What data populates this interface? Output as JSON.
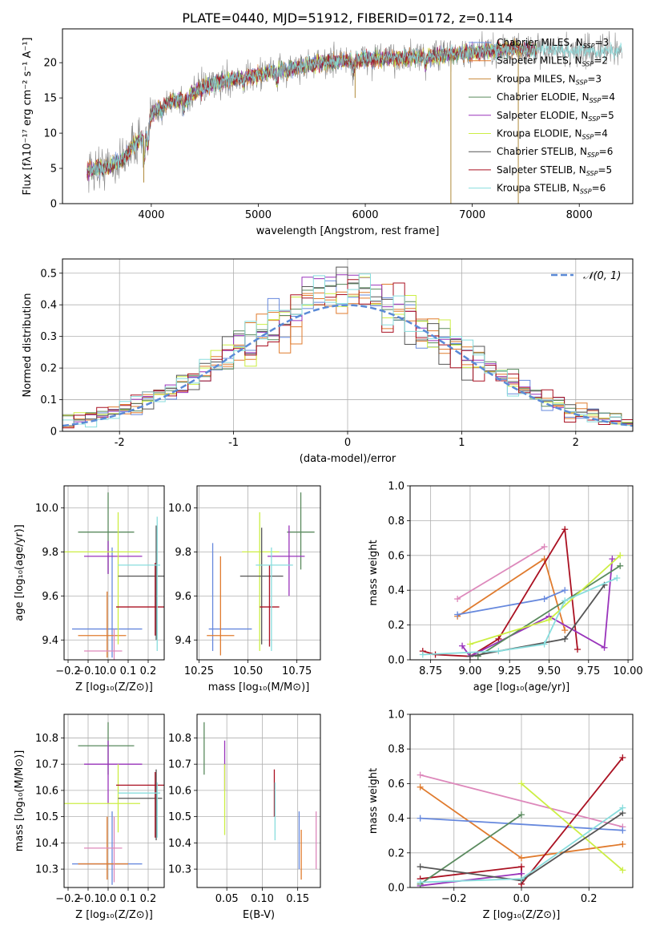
{
  "title": "PLATE=0440, MJD=51912, FIBERID=0172, z=0.114",
  "colors": {
    "c1": "#6688dd",
    "c2": "#e07b2e",
    "c3": "#5a8a5e",
    "c4": "#9933bb",
    "c5": "#ccee44",
    "c6": "#555555",
    "c7": "#aa1122",
    "c8": "#88dddd",
    "c9": "#dd88bb",
    "c10": "#888888",
    "norm": "#5b8ad6",
    "grid": "#b0b0b0"
  },
  "legend_entries": [
    {
      "main": "Chabrier MILES, N",
      "sub": "SSP",
      "tail": "=3",
      "color": "#6688dd"
    },
    {
      "main": "Salpeter MILES, N",
      "sub": "SSP",
      "tail": "=2",
      "color": "#e07b2e"
    },
    {
      "main": "Kroupa MILES, N",
      "sub": "SSP",
      "tail": "=3",
      "color": "#c8893a"
    },
    {
      "main": "Chabrier ELODIE, N",
      "sub": "SSP",
      "tail": "=4",
      "color": "#5a8a5e"
    },
    {
      "main": "Salpeter ELODIE, N",
      "sub": "SSP",
      "tail": "=5",
      "color": "#9933bb"
    },
    {
      "main": "Kroupa ELODIE, N",
      "sub": "SSP",
      "tail": "=4",
      "color": "#ccee44"
    },
    {
      "main": "Chabrier STELIB, N",
      "sub": "SSP",
      "tail": "=6",
      "color": "#555555"
    },
    {
      "main": "Salpeter STELIB, N",
      "sub": "SSP",
      "tail": "=5",
      "color": "#aa1122"
    },
    {
      "main": "Kroupa STELIB, N",
      "sub": "SSP",
      "tail": "=6",
      "color": "#88dddd"
    }
  ],
  "chart_data": [
    {
      "id": "spectrum",
      "type": "line",
      "xlabel": "wavelength [Angstrom, rest frame]",
      "ylabel": "Flux [fλ10⁻¹⁷ erg cm⁻² s⁻¹ A⁻¹]",
      "xlim": [
        3170,
        8500
      ],
      "ylim": [
        0,
        24.8
      ],
      "xticks": [
        4000,
        5000,
        6000,
        7000,
        8000
      ],
      "yticks": [
        0,
        5,
        10,
        15,
        20
      ],
      "continuum": [
        [
          3400,
          4.8
        ],
        [
          3600,
          5.2
        ],
        [
          3750,
          6.5
        ],
        [
          3850,
          8.5
        ],
        [
          3950,
          10.0
        ],
        [
          4000,
          12.5
        ],
        [
          4100,
          14.0
        ],
        [
          4300,
          15.0
        ],
        [
          4500,
          16.5
        ],
        [
          4700,
          17.5
        ],
        [
          4900,
          18.0
        ],
        [
          5200,
          19.0
        ],
        [
          5500,
          19.8
        ],
        [
          5800,
          20.3
        ],
        [
          6000,
          20.5
        ],
        [
          6300,
          20.6
        ],
        [
          6500,
          20.8
        ],
        [
          6800,
          21.2
        ],
        [
          7000,
          21.4
        ],
        [
          7200,
          21.8
        ],
        [
          7400,
          22.0
        ],
        [
          7600,
          21.8
        ],
        [
          8000,
          21.6
        ],
        [
          8400,
          21.8
        ]
      ],
      "features": [
        [
          3934,
          3.5
        ],
        [
          3969,
          3.0
        ],
        [
          4102,
          1.2
        ],
        [
          4304,
          1.5
        ],
        [
          4340,
          1.0
        ],
        [
          4861,
          1.0
        ],
        [
          5175,
          1.5
        ],
        [
          5270,
          0.8
        ],
        [
          5890,
          1.5
        ],
        [
          6563,
          1.0
        ]
      ],
      "dropouts": [
        {
          "x": 3930,
          "y": 3.0
        },
        {
          "x": 5905,
          "y": 15.0
        },
        {
          "x": 6800,
          "y": 0.0
        },
        {
          "x": 7430,
          "y": 0.0
        }
      ]
    },
    {
      "id": "residuals",
      "type": "step",
      "xlabel": "(data-model)/error",
      "ylabel": "Normed distribution",
      "xlim": [
        -2.5,
        2.5
      ],
      "ylim": [
        0,
        0.545
      ],
      "xticks": [
        -2,
        -1,
        0,
        1,
        2
      ],
      "yticks": [
        0,
        0.1,
        0.2,
        0.3,
        0.4,
        0.5
      ],
      "bin_width": 0.1,
      "normal_label": "𝒩(0, 1)",
      "peaks": [
        0.44,
        0.43,
        0.42,
        0.47,
        0.52,
        0.45,
        0.47,
        0.43,
        0.42
      ]
    },
    {
      "id": "age_vs_Z",
      "type": "errorbar",
      "xlabel": "Z [log₁₀(Z/Z⊙)]",
      "ylabel": "age  [log₁₀(age/yr)]",
      "xlim": [
        -0.22,
        0.28
      ],
      "ylim": [
        9.31,
        10.1
      ],
      "xticks": [
        -0.2,
        -0.1,
        0.0,
        0.1,
        0.2
      ],
      "xticklabels": [
        "−0.2",
        "−0.1",
        "0.0",
        "0.1",
        "0.2"
      ],
      "yticks": [
        9.4,
        9.6,
        9.8,
        10.0
      ],
      "yticklabels": [
        "9.4",
        "9.6",
        "9.8",
        "10.0"
      ],
      "points": [
        {
          "x": 0.02,
          "xerr": 0.0,
          "y": 9.6,
          "yerr": [
            0.28,
            0.22
          ],
          "h": -0.18,
          "h2": 0.17,
          "hy": 9.45,
          "color": "#6688dd"
        },
        {
          "x": -0.005,
          "y": 9.42,
          "v1": 9.32,
          "v2": 9.62,
          "h1": -0.15,
          "h2": 0.09,
          "color": "#e07b2e"
        },
        {
          "x": 0.0,
          "y": 9.89,
          "v1": 9.7,
          "v2": 10.07,
          "h1": -0.15,
          "h2": 0.13,
          "color": "#5a8a5e"
        },
        {
          "x": 0.0,
          "y": 9.78,
          "v1": 9.7,
          "v2": 9.85,
          "h1": -0.12,
          "h2": 0.17,
          "color": "#9933bb"
        },
        {
          "x": 0.05,
          "y": 9.8,
          "v1": 9.38,
          "v2": 9.98,
          "h1": -0.22,
          "h2": 0.16,
          "color": "#ccee44"
        },
        {
          "x": 0.24,
          "y": 9.69,
          "v1": 9.4,
          "v2": 9.92,
          "h1": 0.05,
          "h2": 0.28,
          "color": "#555555"
        },
        {
          "x": 0.235,
          "y": 9.55,
          "v1": 9.42,
          "v2": 9.75,
          "h1": 0.04,
          "h2": 0.28,
          "color": "#aa1122"
        },
        {
          "x": 0.245,
          "y": 9.74,
          "v1": 9.35,
          "v2": 9.96,
          "h1": 0.05,
          "h2": 0.26,
          "color": "#88dddd"
        },
        {
          "x": 0.03,
          "y": 9.35,
          "v1": 9.31,
          "v2": 9.45,
          "h1": -0.12,
          "h2": 0.07,
          "color": "#dd88bb"
        }
      ]
    },
    {
      "id": "age_vs_mass",
      "type": "errorbar",
      "xlabel": "mass [log₁₀(M/M⊙)]",
      "ylabel": "",
      "xlim": [
        10.24,
        10.87
      ],
      "ylim": [
        9.31,
        10.1
      ],
      "xticks": [
        10.25,
        10.5,
        10.75
      ],
      "xticklabels": [
        "10.25",
        "10.50",
        "10.75"
      ],
      "yticks": [
        9.4,
        9.6,
        9.8,
        10.0
      ],
      "yticklabels": [
        "9.4",
        "9.6",
        "9.8",
        "10.0"
      ],
      "points": [
        {
          "x": 10.32,
          "y": 9.45,
          "v1": 9.35,
          "v2": 9.84,
          "h1": 10.3,
          "h2": 10.52,
          "color": "#6688dd"
        },
        {
          "x": 10.36,
          "y": 9.42,
          "v1": 9.33,
          "v2": 9.78,
          "h1": 10.29,
          "h2": 10.43,
          "color": "#e07b2e"
        },
        {
          "x": 10.77,
          "y": 9.89,
          "v1": 9.72,
          "v2": 10.07,
          "h1": 10.7,
          "h2": 10.84,
          "color": "#5a8a5e"
        },
        {
          "x": 10.71,
          "y": 9.78,
          "v1": 9.6,
          "v2": 9.92,
          "h1": 10.6,
          "h2": 10.79,
          "color": "#9933bb"
        },
        {
          "x": 10.56,
          "y": 9.8,
          "v1": 9.35,
          "v2": 9.98,
          "h1": 10.47,
          "h2": 10.66,
          "color": "#ccee44"
        },
        {
          "x": 10.57,
          "y": 9.69,
          "v1": 9.38,
          "v2": 9.91,
          "h1": 10.46,
          "h2": 10.68,
          "color": "#555555"
        },
        {
          "x": 10.61,
          "y": 9.55,
          "v1": 9.37,
          "v2": 9.74,
          "h1": 10.56,
          "h2": 10.66,
          "color": "#aa1122"
        },
        {
          "x": 10.62,
          "y": 9.74,
          "v1": 9.35,
          "v2": 9.82,
          "h1": 10.54,
          "h2": 10.73,
          "color": "#88dddd"
        }
      ]
    },
    {
      "id": "weight_vs_age",
      "type": "line",
      "xlabel": "age  [log₁₀(age/yr)]",
      "ylabel": "mass weight",
      "xlim": [
        8.62,
        10.03
      ],
      "ylim": [
        0,
        1.0
      ],
      "xticks": [
        8.75,
        9.0,
        9.25,
        9.5,
        9.75,
        10.0
      ],
      "xticklabels": [
        "8.75",
        "9.00",
        "9.25",
        "9.50",
        "9.75",
        "10.00"
      ],
      "yticks": [
        0,
        0.2,
        0.4,
        0.6,
        0.8,
        1.0
      ],
      "yticklabels": [
        "0.0",
        "0.2",
        "0.4",
        "0.6",
        "0.8",
        "1.0"
      ],
      "series": [
        {
          "color": "#dd88bb",
          "points": [
            [
              8.92,
              0.35
            ],
            [
              9.47,
              0.65
            ]
          ]
        },
        {
          "color": "#e07b2e",
          "points": [
            [
              8.92,
              0.25
            ],
            [
              9.47,
              0.58
            ],
            [
              9.6,
              0.17
            ]
          ]
        },
        {
          "color": "#6688dd",
          "points": [
            [
              8.92,
              0.26
            ],
            [
              9.47,
              0.35
            ],
            [
              9.6,
              0.4
            ]
          ]
        },
        {
          "color": "#aa1122",
          "points": [
            [
              8.7,
              0.05
            ],
            [
              8.78,
              0.03
            ],
            [
              9.0,
              0.02
            ],
            [
              9.18,
              0.12
            ],
            [
              9.6,
              0.75
            ],
            [
              9.68,
              0.06
            ]
          ]
        },
        {
          "color": "#9933bb",
          "points": [
            [
              8.95,
              0.08
            ],
            [
              9.0,
              0.02
            ],
            [
              9.5,
              0.25
            ],
            [
              9.85,
              0.07
            ],
            [
              9.9,
              0.58
            ]
          ]
        },
        {
          "color": "#5a8a5e",
          "points": [
            [
              9.05,
              0.02
            ],
            [
              9.95,
              0.54
            ]
          ]
        },
        {
          "color": "#ccee44",
          "points": [
            [
              9.0,
              0.09
            ],
            [
              9.5,
              0.23
            ],
            [
              9.95,
              0.6
            ]
          ]
        },
        {
          "color": "#555555",
          "points": [
            [
              9.0,
              0.02
            ],
            [
              9.6,
              0.12
            ],
            [
              9.85,
              0.43
            ]
          ]
        },
        {
          "color": "#88dddd",
          "points": [
            [
              8.7,
              0.03
            ],
            [
              9.18,
              0.05
            ],
            [
              9.47,
              0.09
            ],
            [
              9.6,
              0.34
            ],
            [
              9.93,
              0.47
            ]
          ]
        }
      ]
    },
    {
      "id": "mass_vs_Z",
      "type": "errorbar",
      "xlabel": "Z [log₁₀(Z/Z⊙)]",
      "ylabel": "mass [log₁₀(M/M⊙)]",
      "xlim": [
        -0.22,
        0.28
      ],
      "ylim": [
        10.23,
        10.89
      ],
      "xticks": [
        -0.2,
        -0.1,
        0.0,
        0.1,
        0.2
      ],
      "xticklabels": [
        "−0.2",
        "−0.1",
        "0.0",
        "0.1",
        "0.2"
      ],
      "yticks": [
        10.3,
        10.4,
        10.5,
        10.6,
        10.7,
        10.8
      ],
      "yticklabels": [
        "10.3",
        "10.4",
        "10.5",
        "10.6",
        "10.7",
        "10.8"
      ],
      "points": [
        {
          "x": 0.02,
          "y": 10.32,
          "v1": 10.24,
          "v2": 10.52,
          "h1": -0.18,
          "h2": 0.17,
          "color": "#6688dd"
        },
        {
          "x": -0.005,
          "y": 10.32,
          "v1": 10.26,
          "v2": 10.5,
          "h1": -0.15,
          "h2": 0.1,
          "color": "#e07b2e"
        },
        {
          "x": 0.0,
          "y": 10.77,
          "v1": 10.66,
          "v2": 10.86,
          "h1": -0.15,
          "h2": 0.13,
          "color": "#5a8a5e"
        },
        {
          "x": 0.0,
          "y": 10.7,
          "v1": 10.55,
          "v2": 10.79,
          "h1": -0.12,
          "h2": 0.17,
          "color": "#9933bb"
        },
        {
          "x": 0.05,
          "y": 10.55,
          "v1": 10.44,
          "v2": 10.7,
          "h1": -0.22,
          "h2": 0.16,
          "color": "#ccee44"
        },
        {
          "x": 0.24,
          "y": 10.57,
          "v1": 10.41,
          "v2": 10.68,
          "h1": 0.05,
          "h2": 0.27,
          "color": "#555555"
        },
        {
          "x": 0.235,
          "y": 10.62,
          "v1": 10.42,
          "v2": 10.67,
          "h1": 0.04,
          "h2": 0.28,
          "color": "#aa1122"
        },
        {
          "x": 0.245,
          "y": 10.59,
          "v1": 10.42,
          "v2": 10.63,
          "h1": 0.05,
          "h2": 0.26,
          "color": "#88dddd"
        },
        {
          "x": 0.03,
          "y": 10.38,
          "v1": 10.25,
          "v2": 10.5,
          "h1": -0.12,
          "h2": 0.07,
          "color": "#dd88bb"
        }
      ]
    },
    {
      "id": "mass_vs_ebv",
      "type": "errorbar",
      "xlabel": "E(B-V)",
      "ylabel": "",
      "xlim": [
        0.008,
        0.182
      ],
      "ylim": [
        10.23,
        10.89
      ],
      "xticks": [
        0.05,
        0.1,
        0.15
      ],
      "xticklabels": [
        "0.05",
        "0.10",
        "0.15"
      ],
      "yticks": [
        10.3,
        10.4,
        10.5,
        10.6,
        10.7,
        10.8
      ],
      "yticklabels": [
        "10.3",
        "10.4",
        "10.5",
        "10.6",
        "10.7",
        "10.8"
      ],
      "points": [
        {
          "x": 0.018,
          "y": 10.76,
          "v1": 10.66,
          "v2": 10.86,
          "color": "#5a8a5e"
        },
        {
          "x": 0.047,
          "y": 10.7,
          "v1": 10.6,
          "v2": 10.79,
          "color": "#9933bb"
        },
        {
          "x": 0.047,
          "y": 10.56,
          "v1": 10.43,
          "v2": 10.7,
          "color": "#ccee44"
        },
        {
          "x": 0.117,
          "y": 10.62,
          "v1": 10.5,
          "v2": 10.68,
          "color": "#aa1122"
        },
        {
          "x": 0.118,
          "y": 10.5,
          "v1": 10.41,
          "v2": 10.63,
          "color": "#88dddd"
        },
        {
          "x": 0.152,
          "y": 10.44,
          "v1": 10.3,
          "v2": 10.52,
          "color": "#6688dd"
        },
        {
          "x": 0.155,
          "y": 10.36,
          "v1": 10.26,
          "v2": 10.45,
          "color": "#e07b2e"
        },
        {
          "x": 0.176,
          "y": 10.41,
          "v1": 10.3,
          "v2": 10.52,
          "color": "#dd88bb"
        }
      ]
    },
    {
      "id": "weight_vs_Z",
      "type": "line",
      "xlabel": "Z [log₁₀(Z/Z⊙)]",
      "ylabel": "mass weight",
      "xlim": [
        -0.33,
        0.33
      ],
      "ylim": [
        0,
        1.0
      ],
      "xticks": [
        -0.2,
        0.0,
        0.2
      ],
      "xticklabels": [
        "−0.2",
        "0.0",
        "0.2"
      ],
      "yticks": [
        0,
        0.2,
        0.4,
        0.6,
        0.8,
        1.0
      ],
      "yticklabels": [
        "0.0",
        "0.2",
        "0.4",
        "0.6",
        "0.8",
        "1.0"
      ],
      "series": [
        {
          "color": "#dd88bb",
          "points": [
            [
              -0.3,
              0.65
            ],
            [
              0.3,
              0.35
            ]
          ]
        },
        {
          "color": "#e07b2e",
          "points": [
            [
              -0.3,
              0.58
            ],
            [
              0.0,
              0.17
            ],
            [
              0.3,
              0.25
            ]
          ]
        },
        {
          "color": "#6688dd",
          "points": [
            [
              -0.3,
              0.4
            ],
            [
              0.3,
              0.33
            ]
          ]
        },
        {
          "color": "#aa1122",
          "points": [
            [
              -0.3,
              0.05
            ],
            [
              0.0,
              0.12
            ],
            [
              0.0,
              0.02
            ],
            [
              0.3,
              0.75
            ]
          ]
        },
        {
          "color": "#9933bb",
          "points": [
            [
              -0.3,
              0.01
            ],
            [
              0.0,
              0.08
            ]
          ]
        },
        {
          "color": "#5a8a5e",
          "points": [
            [
              -0.3,
              0.02
            ],
            [
              0.0,
              0.42
            ]
          ]
        },
        {
          "color": "#ccee44",
          "points": [
            [
              0.0,
              0.6
            ],
            [
              0.3,
              0.1
            ]
          ]
        },
        {
          "color": "#555555",
          "points": [
            [
              -0.3,
              0.12
            ],
            [
              0.0,
              0.04
            ],
            [
              0.3,
              0.43
            ]
          ]
        },
        {
          "color": "#88dddd",
          "points": [
            [
              -0.3,
              0.03
            ],
            [
              0.0,
              0.05
            ],
            [
              0.3,
              0.46
            ]
          ]
        }
      ]
    }
  ]
}
